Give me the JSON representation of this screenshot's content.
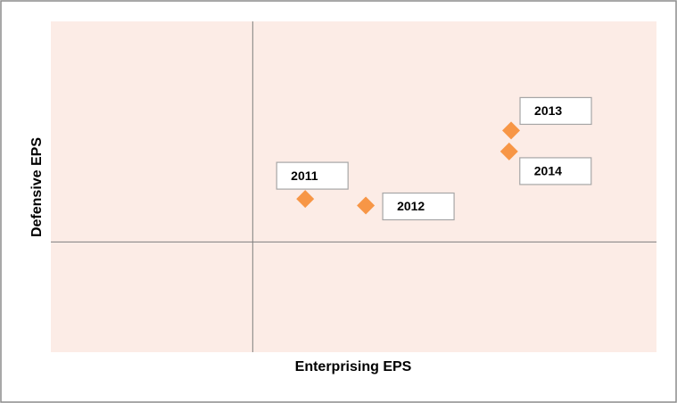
{
  "chart_data": {
    "type": "scatter",
    "x_label": "Enterprising EPS",
    "y_label": "Defensive EPS",
    "labels": [
      "2011",
      "2012",
      "2013",
      "2014"
    ],
    "x": [
      0.26,
      0.56,
      1.28,
      1.27
    ],
    "values": [
      0.39,
      0.33,
      1.01,
      0.82
    ],
    "xlim": [
      -1,
      2
    ],
    "ylim": [
      -1,
      2
    ],
    "color": "#f79646",
    "background": "#fcece6"
  }
}
